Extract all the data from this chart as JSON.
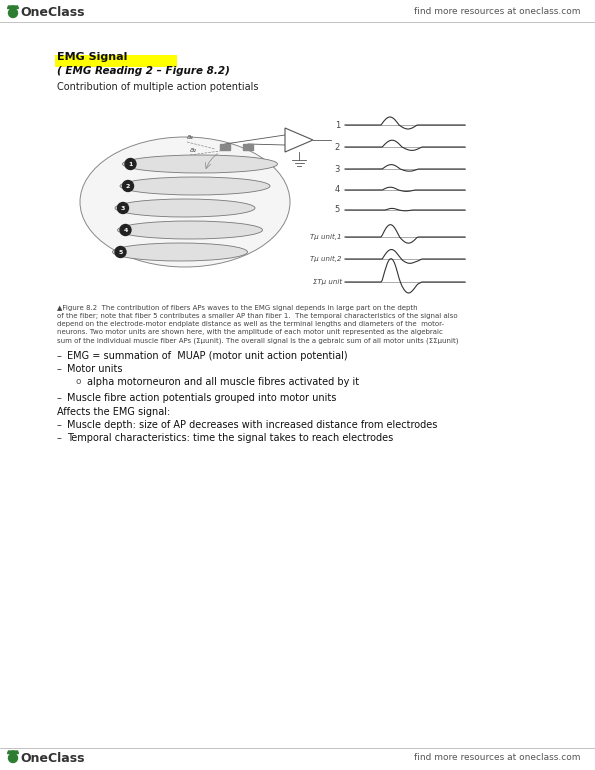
{
  "bg_color": "#ffffff",
  "header_text": "OneClass",
  "header_right": "find more resources at oneclass.com",
  "footer_text": "OneClass",
  "footer_right": "find more resources at oneclass.com",
  "acorn_color": "#2e7d32",
  "title": "EMG Signal",
  "subtitle": "( EMG Reading 2 – Figure 8.2)",
  "subtitle_highlight": "#ffff00",
  "intro_text": "Contribution of multiple action potentials",
  "figure_caption_lines": [
    "▲Figure 8.2  The contribution of fibers APs waves to the EMG signal depends in large part on the depth",
    "of the fiber; note that fiber 5 contributes a smaller AP than fiber 1.  The temporal characteristics of the signal also",
    "depend on the electrode-motor endplate distance as well as the terminal lengths and diameters of the  motor-",
    "neurons. Two motor units are shown here, with the amplitude of each motor unit represented as the algebraic",
    "sum of the individual muscle fiber APs (Σμunit). The overall signal is the a gebraic sum of all motor units (ΣΣμunit)"
  ],
  "bullet1": "EMG = summation of  MUAP (motor unit action potential)",
  "bullet2": "Motor units",
  "sub_bullet": "alpha motorneuron and all muscle fibres activated by it",
  "bullet3": "Muscle fibre action potentials grouped into motor units",
  "section2": "Affects the EMG signal:",
  "bullet4": "Muscle depth: size of AP decreases with increased distance from electrodes",
  "bullet5": "Temporal characteristics: time the signal takes to reach electrodes",
  "text_color": "#333333",
  "highlight_color": "#ffff00",
  "line_color": "#aaaaaa"
}
